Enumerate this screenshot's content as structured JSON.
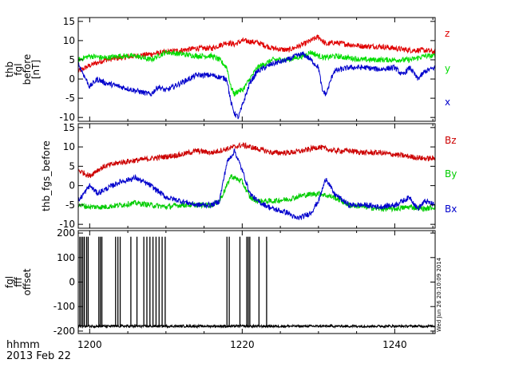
{
  "footer": {
    "line1": "hhmm",
    "line2": "2013 Feb 22"
  },
  "timestamp": "Wed Jun 26 20:10:09 2014",
  "chart_data": [
    {
      "type": "line",
      "ylabel_lines": [
        "thb",
        "fgl",
        "before",
        "[nT]"
      ],
      "xlim": [
        1198.5,
        1245.3
      ],
      "ylim": [
        -11,
        16
      ],
      "yticks": [
        15,
        10,
        5,
        0,
        -5,
        -10
      ],
      "xticks": [
        1200,
        1220,
        1240
      ],
      "series": [
        {
          "name": "z",
          "color": "#e00000",
          "x": [
            1198.5,
            1200,
            1202,
            1204,
            1206,
            1208,
            1210,
            1212,
            1214,
            1216,
            1218,
            1219,
            1220,
            1222,
            1224,
            1226,
            1228,
            1229,
            1230,
            1231,
            1232,
            1234,
            1236,
            1238,
            1240,
            1242,
            1244,
            1245.3
          ],
          "y": [
            2,
            3.5,
            5,
            5.5,
            6,
            6.5,
            7,
            7.5,
            8,
            8,
            9.5,
            9,
            10,
            9.5,
            8,
            7.5,
            9,
            10,
            11,
            9,
            9.5,
            9,
            8.5,
            8.5,
            8,
            7.5,
            7.5,
            7
          ]
        },
        {
          "name": "y",
          "color": "#00dd00",
          "x": [
            1198.5,
            1200,
            1202,
            1204,
            1206,
            1208,
            1210,
            1212,
            1214,
            1216,
            1217,
            1218,
            1218.5,
            1219,
            1219.5,
            1220,
            1221,
            1222,
            1224,
            1226,
            1228,
            1229,
            1230,
            1231,
            1232,
            1234,
            1236,
            1238,
            1240,
            1242,
            1244,
            1245.3
          ],
          "y": [
            5,
            6,
            5.5,
            6,
            6,
            5,
            7,
            6.5,
            6,
            6,
            5,
            3,
            -2,
            -4,
            -3,
            -3,
            0,
            3,
            5,
            5,
            6,
            7,
            6,
            5.5,
            6,
            5.5,
            5,
            5,
            5,
            5,
            6,
            6
          ]
        },
        {
          "name": "x",
          "color": "#0000cc",
          "x": [
            1198.5,
            1199,
            1200,
            1201,
            1202,
            1204,
            1206,
            1208,
            1209,
            1210,
            1212,
            1214,
            1216,
            1218,
            1218.5,
            1219,
            1219.5,
            1220,
            1221,
            1222,
            1224,
            1226,
            1227,
            1228,
            1229,
            1230,
            1230.5,
            1231,
            1232,
            1234,
            1236,
            1238,
            1240,
            1241,
            1242,
            1243,
            1244,
            1245.3
          ],
          "y": [
            4,
            2,
            -2,
            0,
            -1,
            -2,
            -3,
            -4,
            -2,
            -3,
            -1,
            1,
            1,
            0,
            -6,
            -9,
            -10,
            -7,
            -1,
            2,
            4,
            5,
            6,
            6.5,
            5,
            3,
            -3,
            -4,
            2,
            3,
            3,
            2.5,
            3,
            1,
            3,
            0,
            2,
            3
          ]
        }
      ]
    },
    {
      "type": "line",
      "ylabel_lines": [
        "thb_fgs_before"
      ],
      "xlim": [
        1198.5,
        1245.3
      ],
      "ylim": [
        -11,
        16
      ],
      "yticks": [
        15,
        10,
        5,
        0,
        -5,
        -10
      ],
      "xticks": [
        1200,
        1220,
        1240
      ],
      "series": [
        {
          "name": "Bz",
          "color": "#cc0000",
          "x": [
            1198.5,
            1200,
            1201,
            1202,
            1204,
            1206,
            1208,
            1210,
            1212,
            1214,
            1216,
            1218,
            1220,
            1222,
            1224,
            1226,
            1228,
            1230,
            1232,
            1234,
            1236,
            1238,
            1240,
            1242,
            1244,
            1245.3
          ],
          "y": [
            4,
            2.5,
            4,
            5,
            6,
            6.5,
            7,
            7.5,
            8,
            9,
            8.5,
            9.5,
            10.5,
            9.5,
            8.5,
            8.5,
            9,
            10,
            9,
            9,
            8.5,
            8.5,
            8,
            7.5,
            7,
            7
          ]
        },
        {
          "name": "By",
          "color": "#00cc00",
          "x": [
            1198.5,
            1200,
            1202,
            1204,
            1206,
            1208,
            1210,
            1212,
            1214,
            1216,
            1217,
            1218,
            1218.5,
            1219,
            1220,
            1221,
            1222,
            1224,
            1226,
            1228,
            1230,
            1232,
            1234,
            1236,
            1238,
            1240,
            1242,
            1244,
            1245.3
          ],
          "y": [
            -5,
            -5.5,
            -5.5,
            -5,
            -4.5,
            -5,
            -5.5,
            -5,
            -5,
            -5,
            -4,
            0,
            2.5,
            2,
            1,
            -3,
            -4,
            -4,
            -3.5,
            -2.5,
            -2,
            -3,
            -5,
            -5.5,
            -6,
            -6,
            -5.5,
            -6,
            -5.5
          ]
        },
        {
          "name": "Bx",
          "color": "#0000cc",
          "x": [
            1198.5,
            1200,
            1201,
            1202,
            1204,
            1206,
            1207,
            1208,
            1210,
            1212,
            1214,
            1216,
            1217,
            1218,
            1219,
            1220,
            1221,
            1222,
            1224,
            1226,
            1227,
            1228,
            1229,
            1230,
            1231,
            1232,
            1234,
            1236,
            1238,
            1240,
            1242,
            1243,
            1244,
            1245.3
          ],
          "y": [
            -4,
            0,
            -2,
            -1,
            1,
            2,
            1,
            0,
            -3,
            -4,
            -5,
            -5,
            -4,
            6,
            9,
            4,
            -2,
            -4,
            -6,
            -7,
            -8.5,
            -8,
            -7,
            -4,
            2,
            -2,
            -5,
            -5,
            -5.5,
            -5,
            -3,
            -6,
            -4,
            -5
          ]
        }
      ]
    },
    {
      "type": "line",
      "ylabel_lines": [
        "fgl",
        "fff",
        "offset"
      ],
      "xlim": [
        1198.5,
        1245.3
      ],
      "ylim": [
        -210,
        210
      ],
      "yticks": [
        200,
        100,
        0,
        -100,
        -200
      ],
      "xticks": [
        1200,
        1220,
        1240
      ],
      "baseline": -180,
      "spike_top": 185,
      "spikes_x": [
        1198.7,
        1198.9,
        1199.1,
        1199.3,
        1199.6,
        1199.8,
        1201.2,
        1201.4,
        1201.6,
        1203.4,
        1203.7,
        1204.0,
        1205.4,
        1206.2,
        1207.1,
        1207.5,
        1207.9,
        1208.3,
        1208.7,
        1209.1,
        1209.5,
        1209.9,
        1218.0,
        1218.3,
        1219.7,
        1220.6,
        1220.8,
        1221.0,
        1222.2,
        1223.2
      ],
      "series": [
        {
          "color": "#000000"
        }
      ]
    }
  ]
}
